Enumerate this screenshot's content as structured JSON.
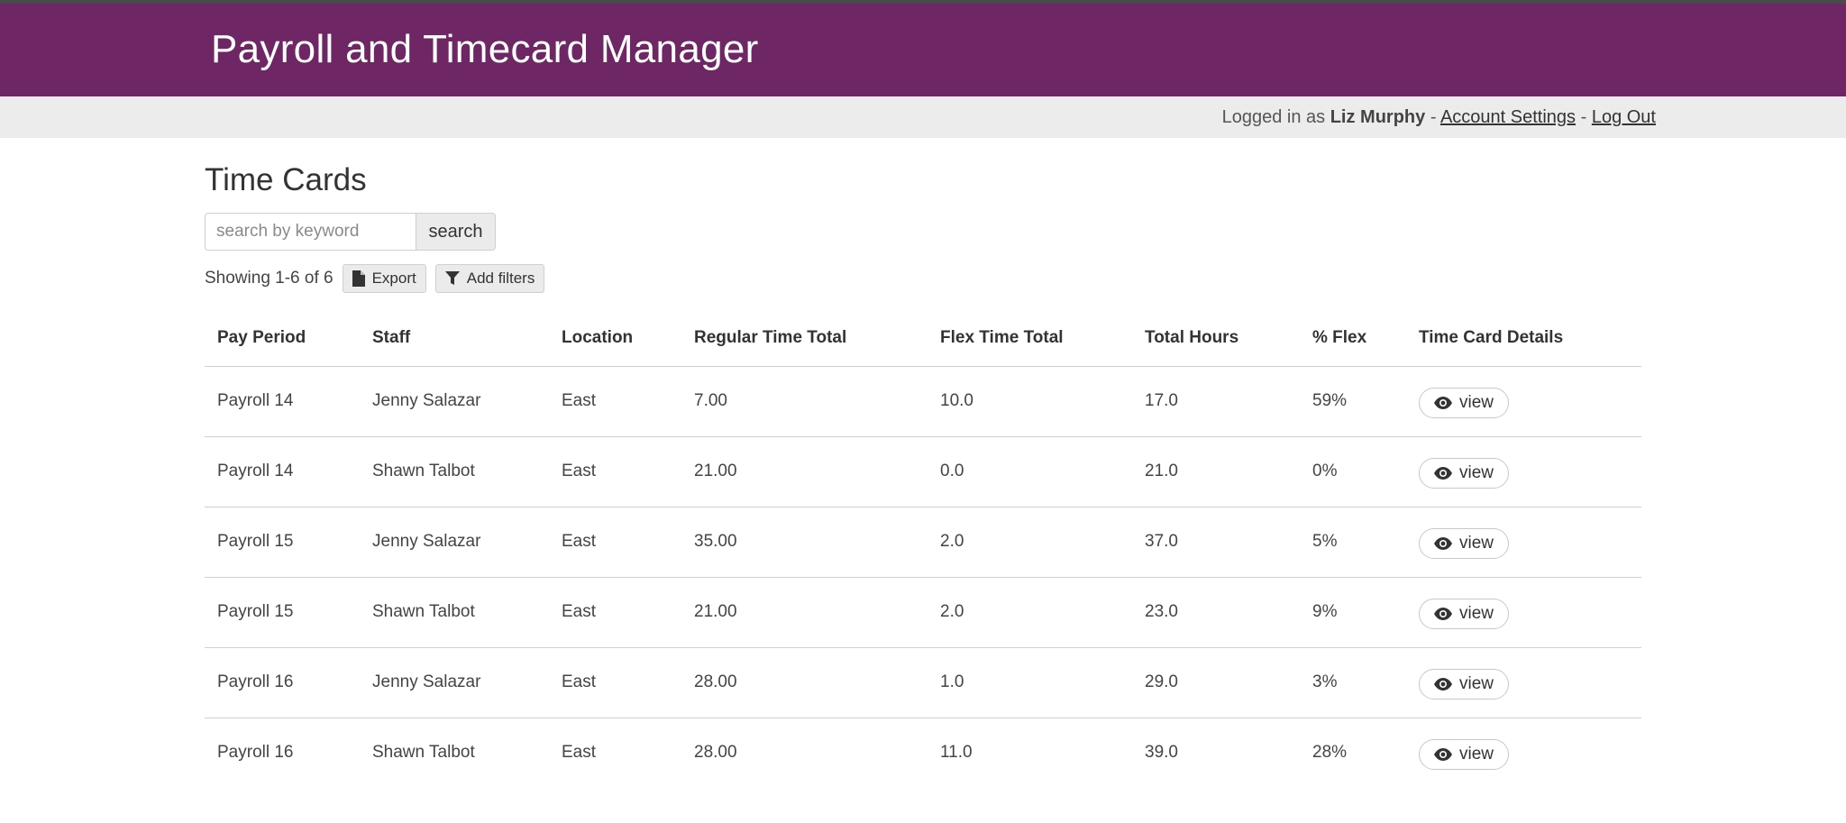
{
  "header": {
    "title": "Payroll and Timecard Manager"
  },
  "userbar": {
    "prefix": "Logged in as",
    "user_name": "Liz Murphy",
    "separator": "-",
    "account_settings": "Account Settings",
    "log_out": "Log Out"
  },
  "page": {
    "title": "Time Cards"
  },
  "search": {
    "placeholder": "search by keyword",
    "value": "",
    "button_label": "search"
  },
  "results": {
    "showing": "Showing 1-6 of 6",
    "export_label": "Export",
    "filters_label": "Add filters"
  },
  "table": {
    "columns": [
      "Pay Period",
      "Staff",
      "Location",
      "Regular Time Total",
      "Flex Time Total",
      "Total Hours",
      "% Flex",
      "Time Card Details"
    ],
    "rows": [
      {
        "pay_period": "Payroll 14",
        "staff": "Jenny Salazar",
        "location": "East",
        "regular": "7.00",
        "flex": "10.0",
        "total": "17.0",
        "pct_flex": "59%",
        "details": "view"
      },
      {
        "pay_period": "Payroll 14",
        "staff": "Shawn Talbot",
        "location": "East",
        "regular": "21.00",
        "flex": "0.0",
        "total": "21.0",
        "pct_flex": "0%",
        "details": "view"
      },
      {
        "pay_period": "Payroll 15",
        "staff": "Jenny Salazar",
        "location": "East",
        "regular": "35.00",
        "flex": "2.0",
        "total": "37.0",
        "pct_flex": "5%",
        "details": "view"
      },
      {
        "pay_period": "Payroll 15",
        "staff": "Shawn Talbot",
        "location": "East",
        "regular": "21.00",
        "flex": "2.0",
        "total": "23.0",
        "pct_flex": "9%",
        "details": "view"
      },
      {
        "pay_period": "Payroll 16",
        "staff": "Jenny Salazar",
        "location": "East",
        "regular": "28.00",
        "flex": "1.0",
        "total": "29.0",
        "pct_flex": "3%",
        "details": "view"
      },
      {
        "pay_period": "Payroll 16",
        "staff": "Shawn Talbot",
        "location": "East",
        "regular": "28.00",
        "flex": "11.0",
        "total": "39.0",
        "pct_flex": "28%",
        "details": "view"
      }
    ]
  },
  "icons": {
    "export": "file-icon",
    "filters": "filter-icon",
    "view": "eye-icon"
  },
  "colors": {
    "header_bg": "#6e2665",
    "userbar_bg": "#ececec"
  }
}
